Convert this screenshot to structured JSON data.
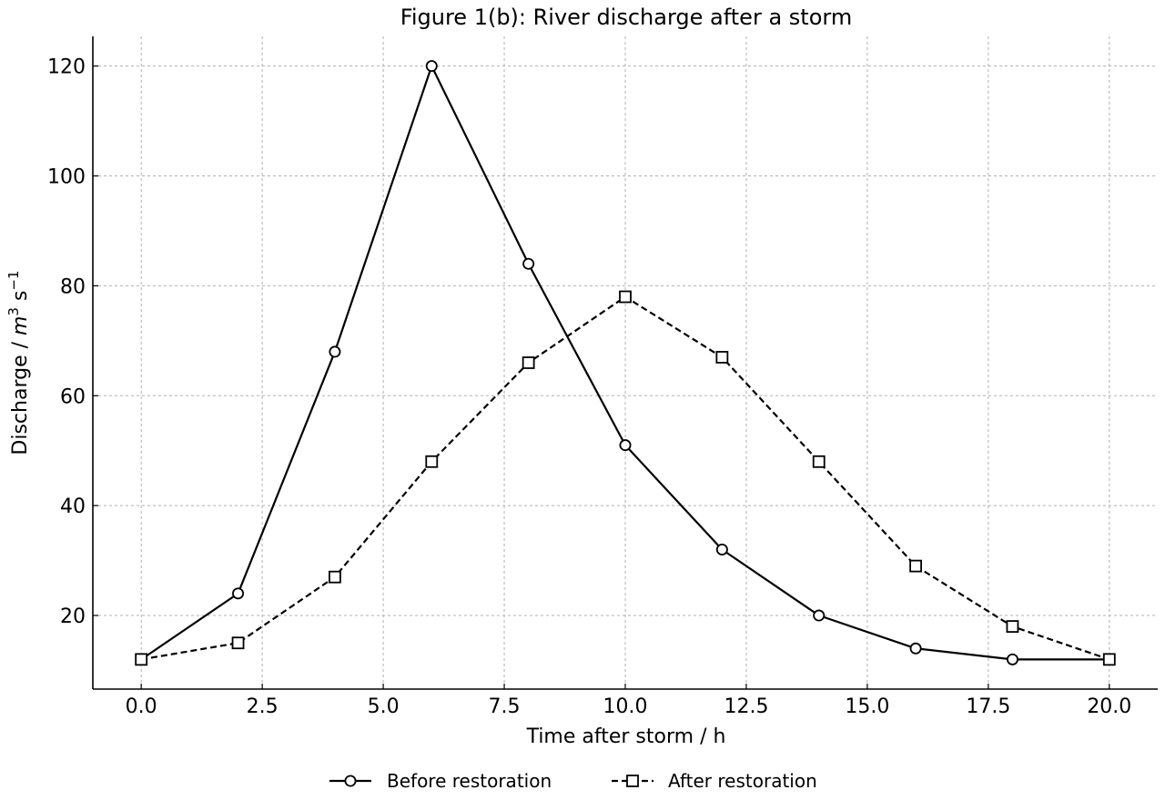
{
  "chart_data": {
    "type": "line",
    "title": "Figure 1(b): River discharge after a storm",
    "xlabel": "Time after storm / h",
    "ylabel": "Discharge / m³ s⁻¹",
    "ylabel_parts": {
      "prefix": "Discharge / ",
      "m": "m",
      "sup3": "3",
      "s": " s",
      "supneg1": "−1"
    },
    "xlim": [
      -1,
      21
    ],
    "ylim": [
      6.6,
      125.4
    ],
    "xticks": [
      0.0,
      2.5,
      5.0,
      7.5,
      10.0,
      12.5,
      15.0,
      17.5,
      20.0
    ],
    "xtick_labels": [
      "0.0",
      "2.5",
      "5.0",
      "7.5",
      "10.0",
      "12.5",
      "15.0",
      "17.5",
      "20.0"
    ],
    "yticks": [
      20,
      40,
      60,
      80,
      100,
      120
    ],
    "ytick_labels": [
      "20",
      "40",
      "60",
      "80",
      "100",
      "120"
    ],
    "grid": true,
    "legend_position": "bottom-center",
    "x": [
      0,
      2,
      4,
      6,
      8,
      10,
      12,
      14,
      16,
      18,
      20
    ],
    "series": [
      {
        "name": "Before restoration",
        "values": [
          12,
          24,
          68,
          120,
          84,
          51,
          32,
          20,
          14,
          12,
          12
        ],
        "marker": "circle",
        "line_style": "solid",
        "color": "#000000"
      },
      {
        "name": "After restoration",
        "values": [
          12,
          15,
          27,
          48,
          66,
          78,
          67,
          48,
          29,
          18,
          12
        ],
        "marker": "square",
        "line_style": "dashed",
        "color": "#000000"
      }
    ]
  }
}
